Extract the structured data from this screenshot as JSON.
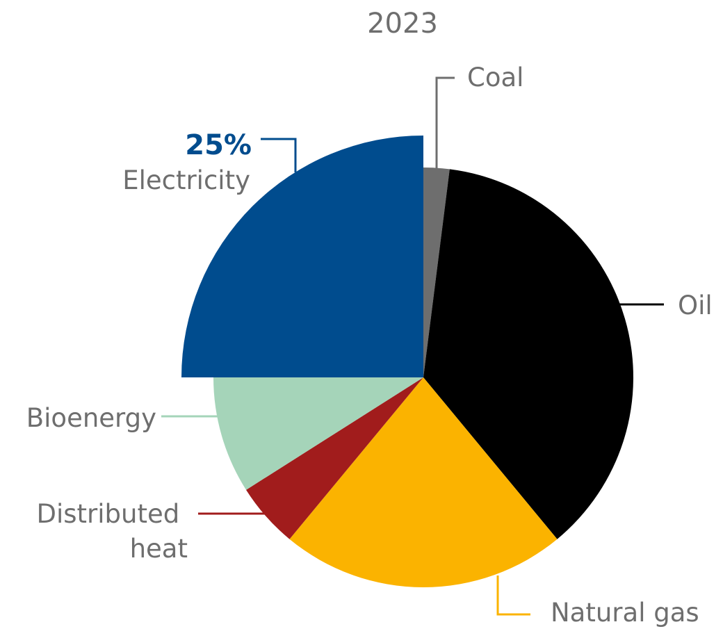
{
  "chart_data": {
    "type": "pie",
    "title": "2023",
    "slices": [
      {
        "name": "Coal",
        "value": 2,
        "color": "#6e6e6e"
      },
      {
        "name": "Oil",
        "value": 37,
        "color": "#000000"
      },
      {
        "name": "Natural gas",
        "value": 22,
        "color": "#fbb300"
      },
      {
        "name": "Distributed heat",
        "value": 5,
        "color": "#a11c1c"
      },
      {
        "name": "Bioenergy",
        "value": 9,
        "color": "#a5d4b9"
      },
      {
        "name": "Electricity",
        "value": 25,
        "color": "#004c8e",
        "label_value": "25%",
        "exploded": true
      }
    ],
    "label_color": "#6e6e6e",
    "highlight_color": "#004c8e"
  }
}
